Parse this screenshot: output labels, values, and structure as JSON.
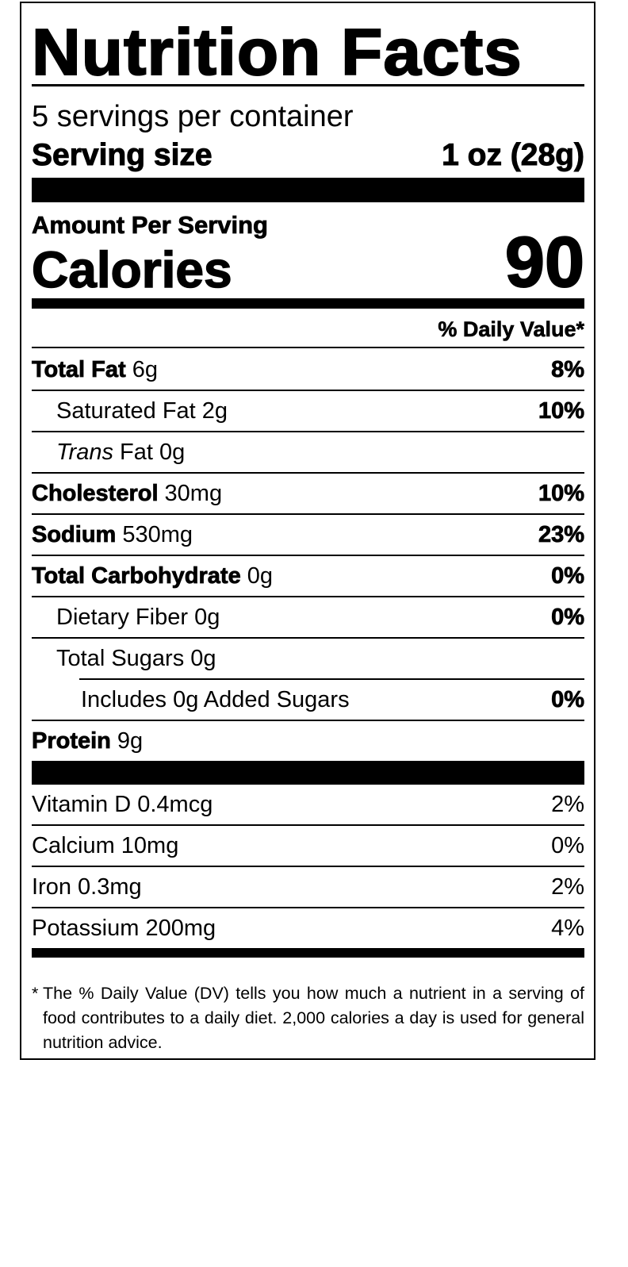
{
  "title": "Nutrition Facts",
  "servings_per_container": "5 servings per container",
  "serving_size": {
    "label": "Serving size",
    "value": "1 oz (28g)"
  },
  "amount_per_serving": "Amount Per Serving",
  "calories": {
    "label": "Calories",
    "value": "90"
  },
  "daily_value_header": "% Daily Value*",
  "nutrients": [
    {
      "name": "Total Fat",
      "amount": "6g",
      "dv": "8%"
    },
    {
      "name": "Saturated Fat",
      "amount": "2g",
      "dv": "10%"
    },
    {
      "name_italic": "Trans",
      "name": "Fat",
      "amount": "0g"
    },
    {
      "name": "Cholesterol",
      "amount": "30mg",
      "dv": "10%"
    },
    {
      "name": "Sodium",
      "amount": "530mg",
      "dv": "23%"
    },
    {
      "name": "Total Carbohydrate",
      "amount": "0g",
      "dv": "0%"
    },
    {
      "name": "Dietary Fiber",
      "amount": "0g",
      "dv": "0%"
    },
    {
      "name": "Total Sugars",
      "amount": "0g"
    },
    {
      "name": "Includes 0g Added Sugars",
      "dv": "0%"
    },
    {
      "name": "Protein",
      "amount": "9g"
    }
  ],
  "vitamins": [
    {
      "name": "Vitamin D 0.4mcg",
      "dv": "2%"
    },
    {
      "name": "Calcium 10mg",
      "dv": "0%"
    },
    {
      "name": "Iron 0.3mg",
      "dv": "2%"
    },
    {
      "name": "Potassium 200mg",
      "dv": "4%"
    }
  ],
  "footnote": {
    "star": "*",
    "text": "The % Daily Value (DV) tells you how much a nutrient in a serving of food contributes to a daily diet. 2,000 calories a day is used for general nutrition advice."
  }
}
